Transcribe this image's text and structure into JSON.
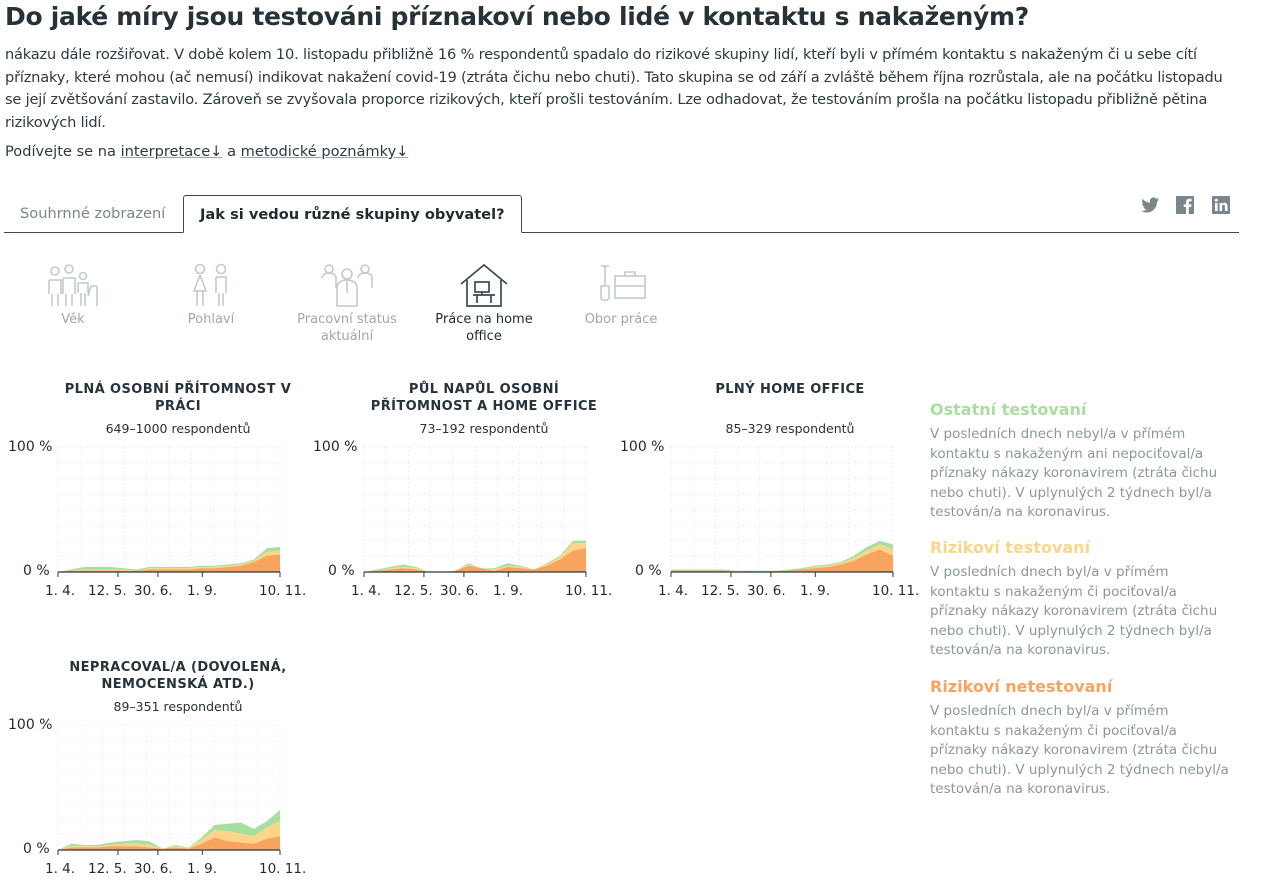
{
  "page": {
    "title": "Do jaké míry jsou testováni příznakoví nebo lidé v kontaktu s nakaženým?",
    "intro": "nákazu dále rozšiřovat. V době kolem 10. listopadu přibližně 16 % respondentů spadalo do rizikové skupiny lidí, kteří byli v přímém kontaktu s nakaženým či u sebe cítí příznaky, které mohou (ač nemusí) indikovat nakažení covid-19 (ztráta čichu nebo chuti). Tato skupina se od září a zvláště během října rozrůstala, ale na počátku listopadu se její zvětšování zastavilo. Zároveň se zvyšovala proporce rizikových, kteří prošli testováním. Lze odhadovat, že testováním prošla na počátku listopadu přibližně pětina rizikových lidí.",
    "see_prefix": "Podívejte se na",
    "see_link1": "interpretace↓",
    "see_and": "a",
    "see_link2": "metodické poznámky↓"
  },
  "tabs": {
    "summary": "Souhrnné zobrazení",
    "groups": "Jak si vedou různé skupiny obyvatel?"
  },
  "social": [
    "twitter-icon",
    "facebook-icon",
    "linkedin-icon"
  ],
  "categories": [
    {
      "label": "Věk",
      "icon": "age-icon"
    },
    {
      "label": "Pohlaví",
      "icon": "gender-icon"
    },
    {
      "label": "Pracovní status aktuální",
      "icon": "work-status-icon"
    },
    {
      "label": "Práce na home office",
      "icon": "home-office-icon"
    },
    {
      "label": "Obor práce",
      "icon": "work-field-icon"
    }
  ],
  "colors": {
    "ostatni": "#a8dea0",
    "rizikovi_testovani": "#fdd58a",
    "rizikovi_netestovani": "#f8a35e",
    "text_muted": "#8c979c"
  },
  "legend": [
    {
      "title": "Ostatní testovaní",
      "color": "#a8dea0",
      "text": "V posledních dnech nebyl/a v přímém kontaktu s nakaženým ani nepociťoval/a příznaky nákazy koronavirem (ztráta čichu nebo chuti). V uplynulých 2 týdnech byl/a testován/a na koronavirus."
    },
    {
      "title": "Rizikoví testovaní",
      "color": "#fdd58a",
      "text": "V posledních dnech byl/a v přímém kontaktu s nakaženým či pociťoval/a příznaky nákazy koronavirem (ztráta čichu nebo chuti). V uplynulých 2 týdnech byl/a testován/a na koronavirus."
    },
    {
      "title": "Rizikoví netestovaní",
      "color": "#f8a35e",
      "text": "V posledních dnech byl/a v přímém kontaktu s nakaženým či pociťoval/a příznaky nákazy koronavirem (ztráta čichu nebo chuti). V uplynulých 2 týdnech nebyl/a testován/a na koronavirus."
    }
  ],
  "chart_data": [
    {
      "type": "area",
      "title": "PLNÁ OSOBNÍ PŘÍTOMNOST V PRÁCI",
      "subtitle": "649–1000 respondentů",
      "y_tick_labels": [
        "100 %",
        "0 %"
      ],
      "x_tick_labels": [
        "1. 4.",
        "12. 5.",
        "30. 6.",
        "1. 9.",
        "10. 11."
      ],
      "ylim": [
        0,
        100
      ],
      "stacked": true,
      "series": [
        {
          "name": "Rizikoví netestovaní",
          "values": [
            0,
            1,
            1,
            1,
            1,
            1,
            1,
            2,
            2,
            2,
            2,
            3,
            3,
            4,
            5,
            8,
            13,
            14
          ]
        },
        {
          "name": "Rizikoví testovaní",
          "values": [
            0,
            0,
            1,
            1,
            1,
            1,
            0,
            1,
            1,
            1,
            1,
            1,
            1,
            1,
            1,
            1,
            3,
            3
          ]
        },
        {
          "name": "Ostatní testovaní",
          "values": [
            0,
            1,
            2,
            2,
            2,
            1,
            1,
            1,
            1,
            1,
            1,
            1,
            1,
            1,
            1,
            1,
            3,
            3
          ]
        }
      ]
    },
    {
      "type": "area",
      "title": "PŮL NAPŮL OSOBNÍ PŘÍTOMNOST A HOME OFFICE",
      "subtitle": "73–192 respondentů",
      "y_tick_labels": [
        "100 %",
        "0 %"
      ],
      "x_tick_labels": [
        "1. 4.",
        "12. 5.",
        "30. 6.",
        "1. 9.",
        "10. 11."
      ],
      "ylim": [
        0,
        100
      ],
      "stacked": true,
      "series": [
        {
          "name": "Rizikoví netestovaní",
          "values": [
            0,
            1,
            2,
            3,
            2,
            0,
            0,
            1,
            5,
            3,
            1,
            4,
            3,
            2,
            5,
            10,
            17,
            19
          ]
        },
        {
          "name": "Rizikoví testovaní",
          "values": [
            0,
            0,
            1,
            1,
            1,
            0,
            0,
            0,
            1,
            0,
            1,
            1,
            1,
            0,
            1,
            2,
            6,
            4
          ]
        },
        {
          "name": "Ostatní testovaní",
          "values": [
            0,
            1,
            1,
            2,
            1,
            0,
            0,
            0,
            1,
            0,
            1,
            2,
            1,
            0,
            1,
            1,
            2,
            2
          ]
        }
      ]
    },
    {
      "type": "area",
      "title": "PLNÝ HOME OFFICE",
      "subtitle": "85–329 respondentů",
      "y_tick_labels": [
        "100 %",
        "0 %"
      ],
      "x_tick_labels": [
        "1. 4.",
        "12. 5.",
        "30. 6.",
        "1. 9.",
        "10. 11."
      ],
      "ylim": [
        0,
        100
      ],
      "stacked": true,
      "series": [
        {
          "name": "Rizikoví netestovaní",
          "values": [
            1,
            1,
            1,
            1,
            1,
            0,
            1,
            0,
            1,
            1,
            2,
            3,
            4,
            6,
            9,
            14,
            18,
            13
          ]
        },
        {
          "name": "Rizikoví testovaní",
          "values": [
            0,
            0,
            0,
            0,
            0,
            0,
            0,
            0,
            0,
            0,
            0,
            1,
            1,
            1,
            2,
            3,
            4,
            5
          ]
        },
        {
          "name": "Ostatní testovaní",
          "values": [
            1,
            1,
            1,
            1,
            1,
            1,
            0,
            1,
            0,
            1,
            1,
            1,
            1,
            1,
            2,
            3,
            3,
            4
          ]
        }
      ]
    },
    {
      "type": "area",
      "title": "NEPRACOVAL/A (DOVOLENÁ, NEMOCENSKÁ ATD.)",
      "subtitle": "89–351 respondentů",
      "y_tick_labels": [
        "100 %",
        "0 %"
      ],
      "x_tick_labels": [
        "1. 4.",
        "12. 5.",
        "30. 6.",
        "1. 9.",
        "10. 11."
      ],
      "ylim": [
        0,
        100
      ],
      "stacked": true,
      "series": [
        {
          "name": "Rizikoví netestovaní",
          "values": [
            0,
            2,
            2,
            2,
            3,
            3,
            3,
            2,
            1,
            2,
            1,
            5,
            10,
            7,
            6,
            5,
            9,
            11
          ]
        },
        {
          "name": "Rizikoví testovaní",
          "values": [
            0,
            1,
            1,
            1,
            1,
            2,
            2,
            2,
            0,
            1,
            1,
            3,
            6,
            8,
            7,
            6,
            9,
            12
          ]
        },
        {
          "name": "Ostatní testovaní",
          "values": [
            0,
            2,
            1,
            1,
            2,
            2,
            3,
            3,
            0,
            1,
            0,
            2,
            4,
            6,
            9,
            6,
            5,
            9
          ]
        }
      ]
    }
  ]
}
